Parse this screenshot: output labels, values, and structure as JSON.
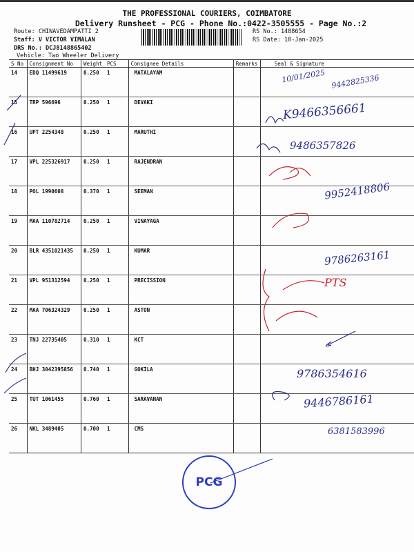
{
  "header": {
    "company": "THE PROFESSIONAL COURIERS, COIMBATORE",
    "subtitle": "Delivery Runsheet - PCG - Phone No.:0422-3505555 - Page No.:2",
    "route": "Route: CHINAVEDAMPATTI 2",
    "staff": "Staff: V VICTOR VIMALAN",
    "drs": "DRS No.: DCJ8148865402",
    "vehicle": "Vehicle: Two Wheeler Delivery",
    "rs_no": "RS No.: 1488654",
    "rs_date": "RS Date: 10-Jan-2025"
  },
  "table": {
    "columns": [
      "S No",
      "Consignment No",
      "Weight",
      "PCS",
      "Consignee Details",
      "Remarks",
      "Seal & Signature"
    ],
    "rows": [
      {
        "sno": "14",
        "cn": "EDQ 11499619",
        "wt": "0.250",
        "pcs": "1",
        "name": "MATALAYAM"
      },
      {
        "sno": "15",
        "cn": "TRP 596696",
        "wt": "0.250",
        "pcs": "1",
        "name": "DEVAKI"
      },
      {
        "sno": "16",
        "cn": "UPT 2254348",
        "wt": "0.250",
        "pcs": "1",
        "name": "MARUTHI"
      },
      {
        "sno": "17",
        "cn": "VPL 225326917",
        "wt": "0.250",
        "pcs": "1",
        "name": "RAJENDRAN"
      },
      {
        "sno": "18",
        "cn": "POL 1990608",
        "wt": "0.370",
        "pcs": "1",
        "name": "SEEMAN"
      },
      {
        "sno": "19",
        "cn": "MAA 110782714",
        "wt": "0.250",
        "pcs": "1",
        "name": "VINAYAGA"
      },
      {
        "sno": "20",
        "cn": "BLR 4351021435",
        "wt": "0.250",
        "pcs": "1",
        "name": "KUMAR"
      },
      {
        "sno": "21",
        "cn": "VPL 951312594",
        "wt": "0.250",
        "pcs": "1",
        "name": "PRECISSION"
      },
      {
        "sno": "22",
        "cn": "MAA 706324329",
        "wt": "0.250",
        "pcs": "1",
        "name": "ASTON"
      },
      {
        "sno": "23",
        "cn": "TNJ 22735405",
        "wt": "0.310",
        "pcs": "1",
        "name": "KCT"
      },
      {
        "sno": "24",
        "cn": "BHJ 3042395856",
        "wt": "0.740",
        "pcs": "1",
        "name": "GOKILA"
      },
      {
        "sno": "25",
        "cn": "TUT 1061455",
        "wt": "0.760",
        "pcs": "1",
        "name": "SARAVANAN"
      },
      {
        "sno": "26",
        "cn": "NKL 3489405",
        "wt": "0.700",
        "pcs": "1",
        "name": "CMS"
      }
    ]
  },
  "handwriting": {
    "r14_date": "10/01/2025",
    "r14_phone": "9442825336",
    "r15_phone": "K9466356661",
    "r16_phone": "9486357826",
    "r18_phone": "9952418806",
    "r20_phone": "9786263161",
    "r21_mark": "PTS",
    "r24_phone": "9786354616",
    "r25_phone": "9446786161",
    "r26_phone": "6381583996"
  },
  "stamp": {
    "text": "PCG"
  },
  "colors": {
    "ink_blue": "#2a2d8c",
    "ink_red": "#c8232c",
    "stamp": "#2a3ec0"
  }
}
